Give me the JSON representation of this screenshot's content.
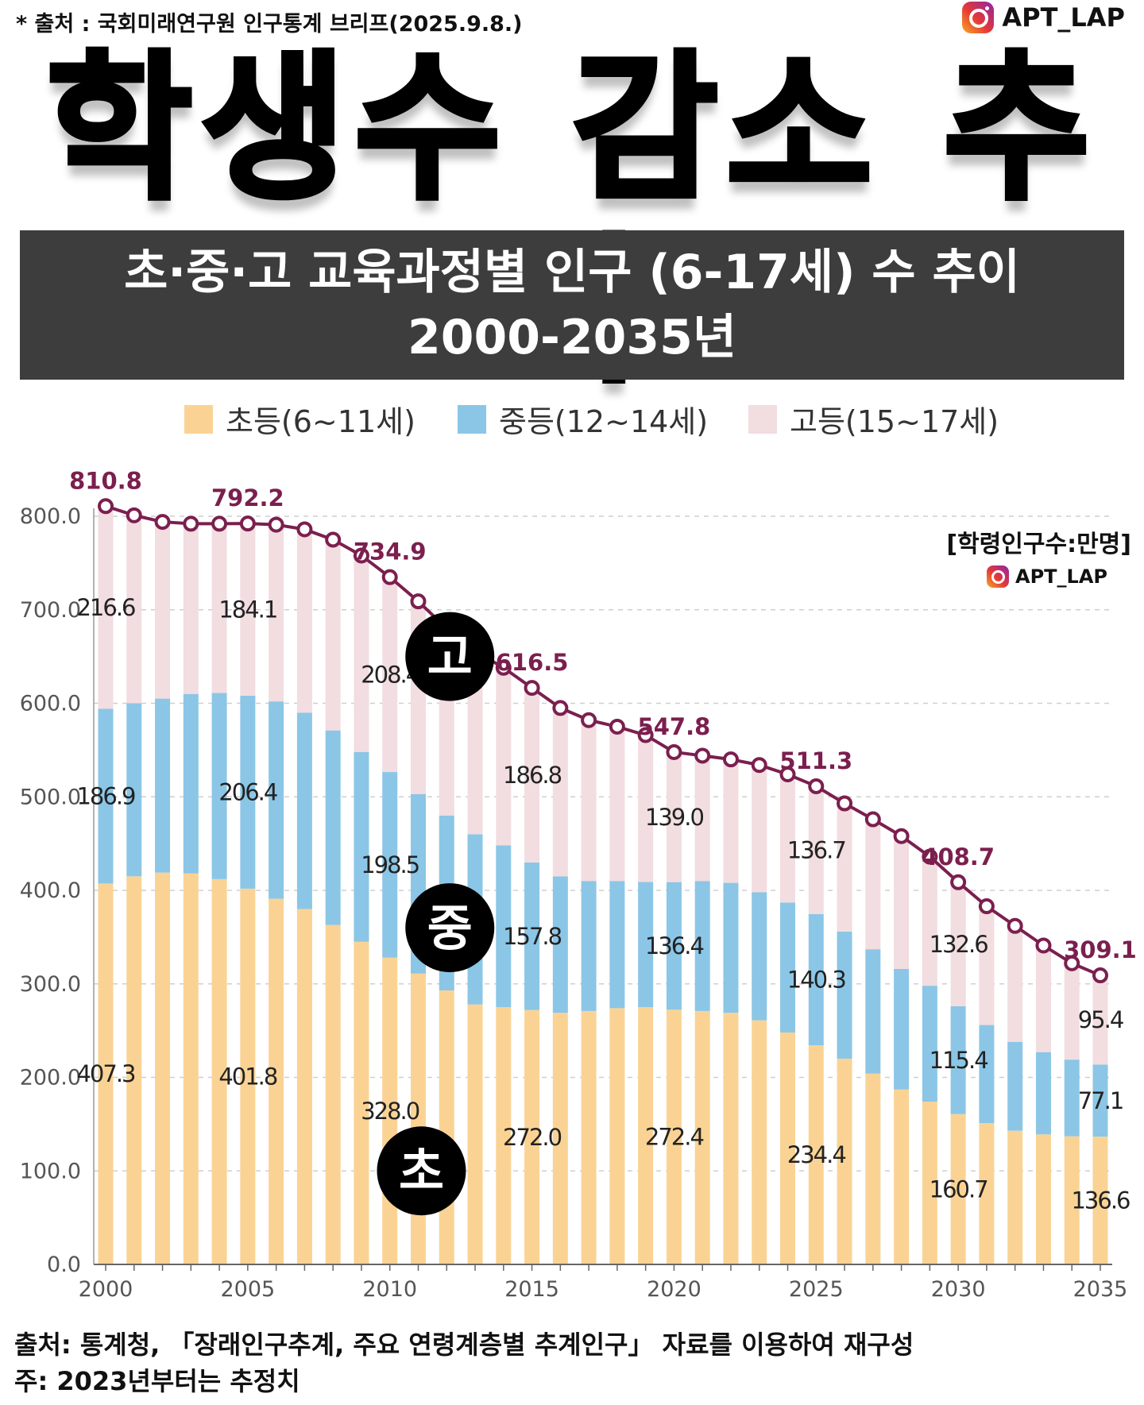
{
  "header": {
    "source_note": "* 출처 : 국회미래연구원 인구통계 브리프(2025.9.8.)",
    "brand": "APT_LAP",
    "main_title": "학생수 감소 추이",
    "subtitle_line1": "초·중·고 교육과정별 인구 (6-17세) 수 추이",
    "subtitle_line2": "2000-2035년"
  },
  "legend": [
    {
      "label": "초등(6~11세)",
      "color": "#fad394"
    },
    {
      "label": "중등(12~14세)",
      "color": "#8bc6e6"
    },
    {
      "label": "고등(15~17세)",
      "color": "#f2dde0"
    }
  ],
  "unit_note": "[학령인구수:만명]",
  "brand_small": "APT_LAP",
  "level_badges": {
    "high": "고",
    "middle": "중",
    "elementary": "초"
  },
  "footer": {
    "line1": "출처: 통계청, 「장래인구추계, 주요 연령계층별 추계인구」 자료를 이용하여 재구성",
    "line2": "주: 2023년부터는 추정치"
  },
  "colors": {
    "line": "#7b1f4e",
    "elementary": "#fad394",
    "middle": "#8bc6e6",
    "high": "#f2dde0",
    "grid": "#cfcfcf"
  },
  "chart_data": {
    "type": "bar",
    "stacked": true,
    "x": [
      2000,
      2001,
      2002,
      2003,
      2004,
      2005,
      2006,
      2007,
      2008,
      2009,
      2010,
      2011,
      2012,
      2013,
      2014,
      2015,
      2016,
      2017,
      2018,
      2019,
      2020,
      2021,
      2022,
      2023,
      2024,
      2025,
      2026,
      2027,
      2028,
      2029,
      2030,
      2031,
      2032,
      2033,
      2034,
      2035
    ],
    "x_tick_labels": [
      "2000",
      "2005",
      "2010",
      "2015",
      "2020",
      "2025",
      "2030",
      "2035"
    ],
    "ylim": [
      0,
      800
    ],
    "y_tick_labels": [
      "0.0",
      "100.0",
      "200.0",
      "300.0",
      "400.0",
      "500.0",
      "600.0",
      "700.0",
      "800.0"
    ],
    "series": [
      {
        "name": "초등(6~11세)",
        "values": [
          407.3,
          415,
          419,
          418,
          412,
          401.8,
          391,
          380,
          363,
          345,
          328.0,
          311,
          293,
          278,
          275,
          272.0,
          269,
          271,
          274,
          275,
          272.4,
          271,
          269,
          261,
          248,
          234.4,
          220,
          204,
          187,
          174,
          160.7,
          151,
          143,
          139,
          137,
          136.6
        ]
      },
      {
        "name": "중등(12~14세)",
        "values": [
          186.9,
          185,
          186,
          192,
          199,
          206.4,
          211,
          210,
          208,
          203,
          198.5,
          192,
          187,
          182,
          173,
          157.8,
          146,
          139,
          136,
          134,
          136.4,
          139,
          139,
          137,
          139,
          140.3,
          136,
          133,
          129,
          124,
          115.4,
          105,
          95,
          88,
          82,
          77.1
        ]
      },
      {
        "name": "고등(15~17세)",
        "values": [
          216.6,
          201,
          189,
          182,
          181,
          184.1,
          189,
          196,
          204,
          210,
          208.4,
          206,
          200,
          196,
          190,
          186.8,
          180,
          172,
          165,
          157,
          139.0,
          134,
          132,
          136,
          137,
          136.7,
          137,
          139,
          142,
          138,
          132.6,
          127,
          124,
          114,
          103,
          95.4
        ]
      }
    ],
    "totals": [
      810.8,
      801,
      794,
      792,
      792,
      792.2,
      791,
      786,
      775,
      758,
      734.9,
      709,
      680,
      656,
      638,
      616.5,
      595,
      582,
      575,
      566,
      547.8,
      544,
      540,
      534,
      524,
      511.3,
      493,
      476,
      458,
      436,
      408.7,
      383,
      362,
      341,
      322,
      309.1
    ],
    "labeled_totals": {
      "2000": "810.8",
      "2005": "792.2",
      "2010": "734.9",
      "2015": "616.5",
      "2020": "547.8",
      "2025": "511.3",
      "2030": "408.7",
      "2035": "309.1"
    },
    "segment_labels": {
      "2000": [
        "407.3",
        "186.9",
        "216.6"
      ],
      "2005": [
        "401.8",
        "206.4",
        "184.1"
      ],
      "2010": [
        "328.0",
        "198.5",
        "208.4"
      ],
      "2015": [
        "272.0",
        "157.8",
        "186.8"
      ],
      "2020": [
        "272.4",
        "136.4",
        "139.0"
      ],
      "2025": [
        "234.4",
        "140.3",
        "136.7"
      ],
      "2030": [
        "160.7",
        "115.4",
        "132.6"
      ],
      "2035": [
        "136.6",
        "77.1",
        "95.4"
      ]
    }
  }
}
